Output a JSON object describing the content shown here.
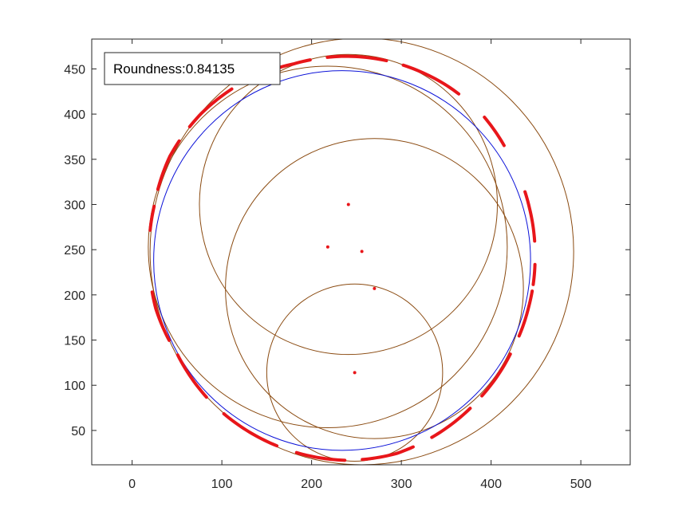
{
  "chart_data": {
    "type": "scatter",
    "title": "",
    "xlabel": "",
    "ylabel": "",
    "xlim": [
      -45,
      555
    ],
    "ylim": [
      12,
      483
    ],
    "x_ticks": [
      0,
      100,
      200,
      300,
      400,
      500
    ],
    "y_ticks": [
      50,
      100,
      150,
      200,
      250,
      300,
      350,
      400,
      450
    ],
    "grid": false,
    "annotation": {
      "text": "Roundness:0.84135",
      "placement": "top-left"
    },
    "colors": {
      "boundary": "#e8161a",
      "fitted_circle": "#0b11d8",
      "test_circles": "#8a4a10",
      "centers": "#e8161a",
      "axes": "#262626"
    },
    "fitted_circle": {
      "cx": 234,
      "cy": 238,
      "r": 210
    },
    "test_circles": [
      {
        "cx": 256,
        "cy": 248,
        "r": 236
      },
      {
        "cx": 218,
        "cy": 253,
        "r": 200
      },
      {
        "cx": 241,
        "cy": 300,
        "r": 166
      },
      {
        "cx": 270,
        "cy": 207,
        "r": 166
      },
      {
        "cx": 248,
        "cy": 114,
        "r": 98
      }
    ],
    "centers": [
      {
        "x": 241,
        "y": 300
      },
      {
        "x": 218,
        "y": 253
      },
      {
        "x": 256,
        "y": 248
      },
      {
        "x": 270,
        "y": 207
      },
      {
        "x": 248,
        "y": 114
      }
    ],
    "boundary_center": {
      "cx": 237,
      "cy": 241
    },
    "boundary_segments": [
      [
        [
          5,
          20
        ],
        [
          35,
          45
        ],
        [
          55,
          73
        ],
        [
          78,
          95
        ],
        [
          100,
          118
        ],
        [
          124,
          140
        ],
        [
          145,
          160
        ],
        [
          165,
          172
        ]
      ],
      [
        [
          190,
          205
        ],
        [
          210,
          225
        ],
        [
          232,
          250
        ],
        [
          256,
          270
        ],
        [
          275,
          290
        ]
      ],
      [
        [
          296,
          310
        ],
        [
          315,
          330
        ],
        [
          336,
          350
        ],
        [
          352,
          358
        ]
      ]
    ],
    "boundary_nodes": [
      {
        "angle": 0,
        "r": 212
      },
      {
        "angle": 15,
        "r": 213
      },
      {
        "angle": 30,
        "r": 215
      },
      {
        "angle": 45,
        "r": 220
      },
      {
        "angle": 60,
        "r": 222
      },
      {
        "angle": 75,
        "r": 223
      },
      {
        "angle": 90,
        "r": 223
      },
      {
        "angle": 105,
        "r": 222
      },
      {
        "angle": 120,
        "r": 225
      },
      {
        "angle": 135,
        "r": 226
      },
      {
        "angle": 150,
        "r": 225
      },
      {
        "angle": 165,
        "r": 220
      },
      {
        "angle": 180,
        "r": 218
      },
      {
        "angle": 195,
        "r": 218
      },
      {
        "angle": 210,
        "r": 215
      },
      {
        "angle": 225,
        "r": 218
      },
      {
        "angle": 240,
        "r": 220
      },
      {
        "angle": 255,
        "r": 222
      },
      {
        "angle": 270,
        "r": 224
      },
      {
        "angle": 285,
        "r": 224
      },
      {
        "angle": 300,
        "r": 220
      },
      {
        "angle": 315,
        "r": 216
      },
      {
        "angle": 330,
        "r": 213
      },
      {
        "angle": 345,
        "r": 212
      }
    ]
  }
}
